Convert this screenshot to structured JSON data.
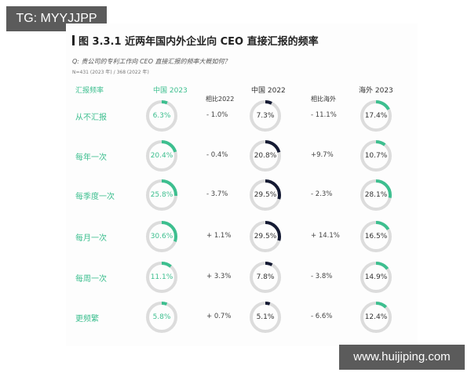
{
  "watermarks": {
    "top_left": "TG: MYYJJPP",
    "bottom_right": "www.huijiping.com"
  },
  "title": "图 3.3.1 近两年国内外企业向 CEO 直接汇报的频率",
  "question": "Q: 贵公司的专利工作向 CEO 直接汇报的频率大概如何？",
  "sample": "N=431 (2023 年) / 368 (2022 年)",
  "headers": {
    "frequency": "汇报频率",
    "china_2023": "中国 2023",
    "vs_2022": "相比2022",
    "china_2022": "中国 2022",
    "vs_overseas": "相比海外",
    "overseas_2023": "海外 2023"
  },
  "colors": {
    "green": "#3dbf8f",
    "navy": "#141a33",
    "track": "#dcdcdc"
  },
  "rows": [
    {
      "label": "从不汇报",
      "china_2023": "6.3%",
      "vs_2022": "- 1.0%",
      "china_2022": "7.3%",
      "vs_overseas": "- 11.1%",
      "overseas_2023": "17.4%"
    },
    {
      "label": "每年一次",
      "china_2023": "20.4%",
      "vs_2022": "- 0.4%",
      "china_2022": "20.8%",
      "vs_overseas": "+9.7%",
      "overseas_2023": "10.7%"
    },
    {
      "label": "每季度一次",
      "china_2023": "25.8%",
      "vs_2022": "- 3.7%",
      "china_2022": "29.5%",
      "vs_overseas": "- 2.3%",
      "overseas_2023": "28.1%"
    },
    {
      "label": "每月一次",
      "china_2023": "30.6%",
      "vs_2022": "+ 1.1%",
      "china_2022": "29.5%",
      "vs_overseas": "+ 14.1%",
      "overseas_2023": "16.5%"
    },
    {
      "label": "每周一次",
      "china_2023": "11.1%",
      "vs_2022": "+ 3.3%",
      "china_2022": "7.8%",
      "vs_overseas": "- 3.8%",
      "overseas_2023": "14.9%"
    },
    {
      "label": "更频繁",
      "china_2023": "5.8%",
      "vs_2022": "+ 0.7%",
      "china_2022": "5.1%",
      "vs_overseas": "- 6.6%",
      "overseas_2023": "12.4%"
    }
  ],
  "chart_data": {
    "type": "table",
    "title": "图 3.3.1 近两年国内外企业向 CEO 直接汇报的频率",
    "subtitle": "Q: 贵公司的专利工作向 CEO 直接汇报的频率大概如何？ N=431 (2023 年) / 368 (2022 年)",
    "categories": [
      "从不汇报",
      "每年一次",
      "每季度一次",
      "每月一次",
      "每周一次",
      "更频繁"
    ],
    "series": [
      {
        "name": "中国 2023",
        "values": [
          6.3,
          20.4,
          25.8,
          30.6,
          11.1,
          5.8
        ]
      },
      {
        "name": "相比2022",
        "values": [
          -1.0,
          -0.4,
          -3.7,
          1.1,
          3.3,
          0.7
        ]
      },
      {
        "name": "中国 2022",
        "values": [
          7.3,
          20.8,
          29.5,
          29.5,
          7.8,
          5.1
        ]
      },
      {
        "name": "相比海外",
        "values": [
          -11.1,
          9.7,
          -2.3,
          14.1,
          -3.8,
          -6.6
        ]
      },
      {
        "name": "海外 2023",
        "values": [
          17.4,
          10.7,
          28.1,
          16.5,
          14.9,
          12.4
        ]
      }
    ],
    "unit": "%",
    "visual": "donut gauges per cell"
  }
}
